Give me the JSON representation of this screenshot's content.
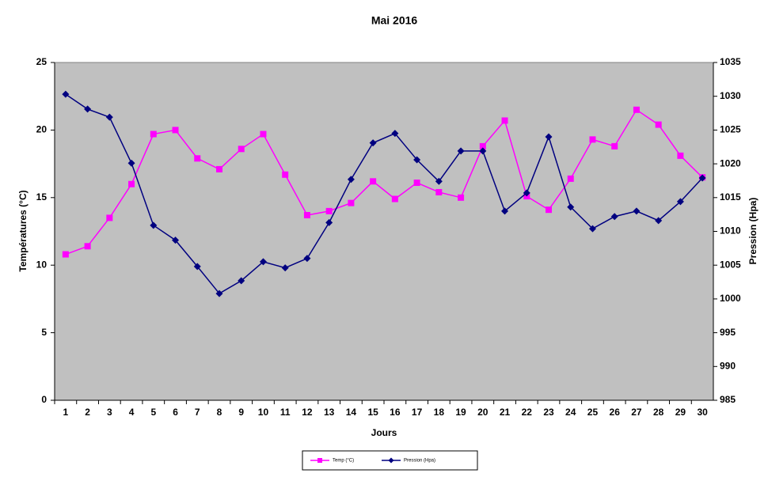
{
  "chart_data": {
    "type": "line",
    "title": "Mai 2016",
    "x_label": "Jours",
    "y_label": "Températures (°C)",
    "y2_label": "Pression (Hpa)",
    "categories": [
      1,
      2,
      3,
      4,
      5,
      6,
      7,
      8,
      9,
      10,
      11,
      12,
      13,
      14,
      15,
      16,
      17,
      18,
      19,
      20,
      21,
      22,
      23,
      24,
      25,
      26,
      27,
      28,
      29,
      30
    ],
    "series": [
      {
        "name": "Temp (°C)",
        "color": "#ff00ff",
        "marker": "square",
        "values": [
          10.8,
          11.4,
          13.5,
          16.0,
          19.7,
          20.0,
          17.9,
          17.1,
          18.6,
          19.7,
          16.7,
          13.7,
          14.0,
          14.6,
          16.2,
          14.9,
          16.1,
          15.4,
          15.0,
          18.8,
          20.7,
          15.1,
          14.1,
          16.4,
          19.3,
          18.8,
          21.5,
          20.4,
          18.1,
          16.5
        ]
      },
      {
        "name": "Pression (Hpa)",
        "color": "#000080",
        "marker": "diamond",
        "axis": "y2",
        "values": [
          1030.3,
          1028.1,
          1026.9,
          1020.1,
          1010.9,
          1008.7,
          1004.8,
          1000.8,
          1002.7,
          1005.5,
          1004.6,
          1006.0,
          1011.3,
          1017.7,
          1023.1,
          1024.5,
          1020.6,
          1017.4,
          1021.9,
          1021.9,
          1013.0,
          1015.7,
          1024.0,
          1013.6,
          1010.4,
          1012.2,
          1013.0,
          1011.6,
          1014.4,
          1017.9
        ]
      }
    ],
    "ylim": [
      0,
      25
    ],
    "yticks": [
      0,
      5,
      10,
      15,
      20,
      25
    ],
    "y2lim": [
      985,
      1035
    ],
    "y2ticks": [
      985,
      990,
      995,
      1000,
      1005,
      1010,
      1015,
      1020,
      1025,
      1030,
      1035
    ],
    "plot_background": "#c0c0c0"
  }
}
